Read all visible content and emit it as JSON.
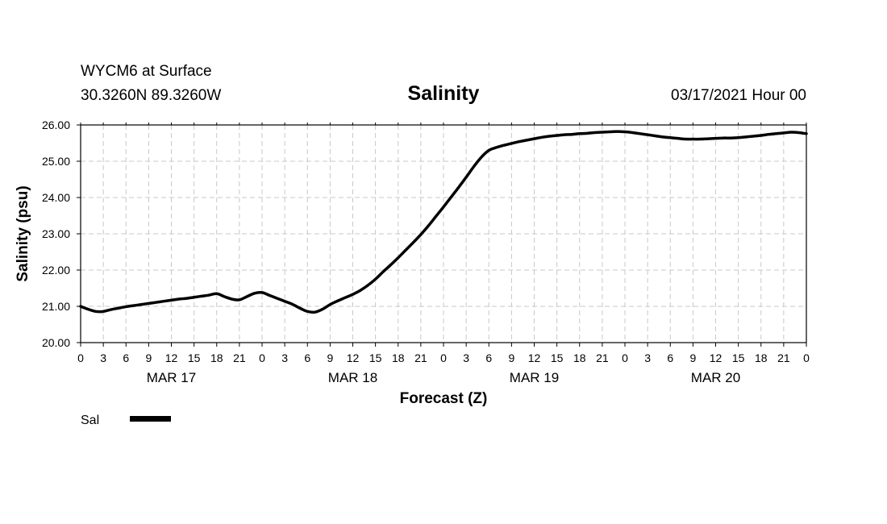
{
  "header": {
    "station_line": "WYCM6 at Surface",
    "coords_line": "30.3260N 89.3260W",
    "title": "Salinity",
    "run_time": "03/17/2021 Hour 00"
  },
  "chart_data": {
    "type": "line",
    "title": "Salinity",
    "xlabel": "Forecast (Z)",
    "ylabel": "Salinity (psu)",
    "x_unit": "forecast hour",
    "xlim": [
      0,
      96
    ],
    "ylim": [
      20,
      26
    ],
    "grid": true,
    "y_ticks": [
      {
        "value": 20,
        "label": "20.00"
      },
      {
        "value": 21,
        "label": "21.00"
      },
      {
        "value": 22,
        "label": "22.00"
      },
      {
        "value": 23,
        "label": "23.00"
      },
      {
        "value": 24,
        "label": "24.00"
      },
      {
        "value": 25,
        "label": "25.00"
      },
      {
        "value": 26,
        "label": "26.00"
      }
    ],
    "x_ticks": [
      {
        "value": 0,
        "label": "0"
      },
      {
        "value": 3,
        "label": "3"
      },
      {
        "value": 6,
        "label": "6"
      },
      {
        "value": 9,
        "label": "9"
      },
      {
        "value": 12,
        "label": "12"
      },
      {
        "value": 15,
        "label": "15"
      },
      {
        "value": 18,
        "label": "18"
      },
      {
        "value": 21,
        "label": "21"
      },
      {
        "value": 24,
        "label": "0"
      },
      {
        "value": 27,
        "label": "3"
      },
      {
        "value": 30,
        "label": "6"
      },
      {
        "value": 33,
        "label": "9"
      },
      {
        "value": 36,
        "label": "12"
      },
      {
        "value": 39,
        "label": "15"
      },
      {
        "value": 42,
        "label": "18"
      },
      {
        "value": 45,
        "label": "21"
      },
      {
        "value": 48,
        "label": "0"
      },
      {
        "value": 51,
        "label": "3"
      },
      {
        "value": 54,
        "label": "6"
      },
      {
        "value": 57,
        "label": "9"
      },
      {
        "value": 60,
        "label": "12"
      },
      {
        "value": 63,
        "label": "15"
      },
      {
        "value": 66,
        "label": "18"
      },
      {
        "value": 69,
        "label": "21"
      },
      {
        "value": 72,
        "label": "0"
      },
      {
        "value": 75,
        "label": "3"
      },
      {
        "value": 78,
        "label": "6"
      },
      {
        "value": 81,
        "label": "9"
      },
      {
        "value": 84,
        "label": "12"
      },
      {
        "value": 87,
        "label": "15"
      },
      {
        "value": 90,
        "label": "18"
      },
      {
        "value": 93,
        "label": "21"
      },
      {
        "value": 96,
        "label": "0"
      }
    ],
    "day_labels": [
      {
        "value": 12,
        "label": "MAR 17"
      },
      {
        "value": 36,
        "label": "MAR 18"
      },
      {
        "value": 60,
        "label": "MAR 19"
      },
      {
        "value": 84,
        "label": "MAR 20"
      }
    ],
    "legend": {
      "position": "bottom-left",
      "entries": [
        {
          "name": "Sal",
          "color": "#000000"
        }
      ]
    },
    "series": [
      {
        "name": "Sal",
        "color": "#000000",
        "x": [
          0,
          1,
          2,
          3,
          4,
          5,
          6,
          7,
          8,
          9,
          10,
          11,
          12,
          13,
          14,
          15,
          16,
          17,
          18,
          19,
          20,
          21,
          22,
          23,
          24,
          25,
          26,
          27,
          28,
          29,
          30,
          31,
          32,
          33,
          34,
          35,
          36,
          37,
          38,
          39,
          40,
          41,
          42,
          43,
          44,
          45,
          46,
          47,
          48,
          49,
          50,
          51,
          52,
          53,
          54,
          55,
          56,
          57,
          58,
          59,
          60,
          61,
          62,
          63,
          64,
          65,
          66,
          67,
          68,
          69,
          70,
          71,
          72,
          73,
          74,
          75,
          76,
          77,
          78,
          79,
          80,
          81,
          82,
          83,
          84,
          85,
          86,
          87,
          88,
          89,
          90,
          91,
          92,
          93,
          94,
          95,
          96
        ],
        "values": [
          21.0,
          20.92,
          20.86,
          20.86,
          20.91,
          20.95,
          20.99,
          21.02,
          21.05,
          21.08,
          21.11,
          21.14,
          21.17,
          21.2,
          21.22,
          21.25,
          21.28,
          21.31,
          21.35,
          21.27,
          21.2,
          21.18,
          21.27,
          21.36,
          21.38,
          21.3,
          21.22,
          21.14,
          21.06,
          20.95,
          20.86,
          20.84,
          20.92,
          21.05,
          21.15,
          21.24,
          21.33,
          21.44,
          21.58,
          21.75,
          21.95,
          22.14,
          22.34,
          22.55,
          22.76,
          22.98,
          23.22,
          23.48,
          23.74,
          24.01,
          24.28,
          24.56,
          24.85,
          25.11,
          25.3,
          25.38,
          25.44,
          25.49,
          25.54,
          25.58,
          25.62,
          25.66,
          25.69,
          25.71,
          25.73,
          25.74,
          25.76,
          25.77,
          25.79,
          25.8,
          25.81,
          25.82,
          25.81,
          25.79,
          25.76,
          25.73,
          25.7,
          25.67,
          25.65,
          25.63,
          25.61,
          25.61,
          25.61,
          25.62,
          25.63,
          25.64,
          25.64,
          25.65,
          25.67,
          25.69,
          25.71,
          25.74,
          25.76,
          25.78,
          25.8,
          25.79,
          25.76
        ]
      }
    ]
  }
}
